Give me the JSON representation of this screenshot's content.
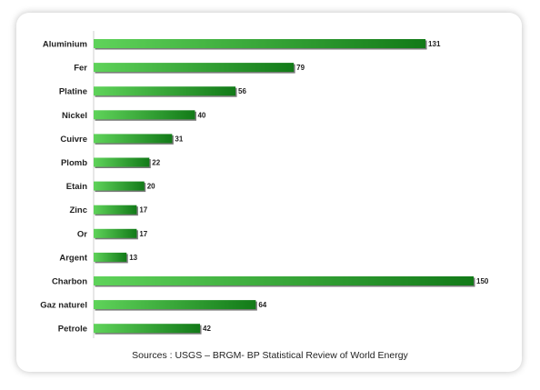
{
  "chart_data": {
    "type": "bar",
    "orientation": "horizontal",
    "categories": [
      "Aluminium",
      "Fer",
      "Platine",
      "Nickel",
      "Cuivre",
      "Plomb",
      "Etain",
      "Zinc",
      "Or",
      "Argent",
      "Charbon",
      "Gaz naturel",
      "Petrole"
    ],
    "values": [
      131,
      79,
      56,
      40,
      31,
      22,
      20,
      17,
      17,
      13,
      150,
      64,
      42
    ],
    "xlim": [
      0,
      150
    ],
    "grid": false,
    "legend": "none",
    "colors": {
      "bar_light": "#5fd35a",
      "bar_dark": "#127a18",
      "bar_shadow": "#7a7a7a"
    }
  },
  "source_text": "Sources : USGS – BRGM- BP Statistical Review of World Energy"
}
